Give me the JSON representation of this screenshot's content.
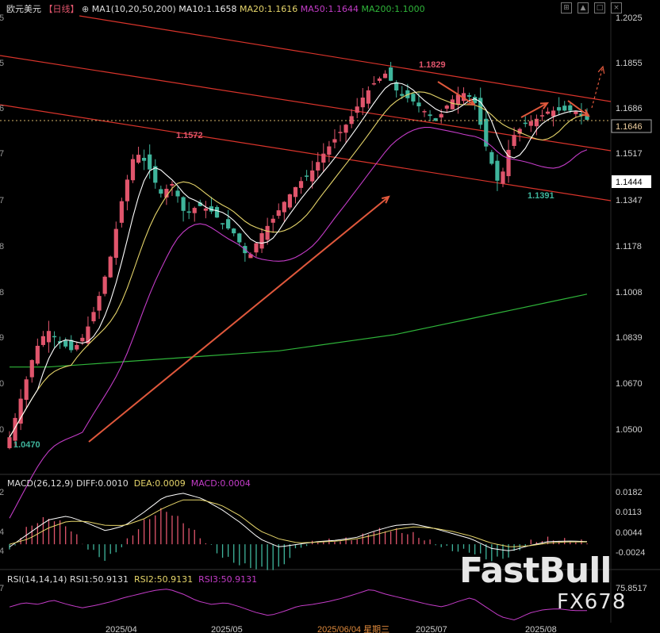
{
  "header": {
    "symbol": "欧元美元",
    "period": "【日线】",
    "ma_title": "MA1(10,20,50,200)",
    "ma10": "MA10:1.1658",
    "ma20": "MA20:1.1616",
    "ma50": "MA50:1.1644",
    "ma200": "MA200:1.1000",
    "window_icons": [
      "collapse-icon",
      "restore-icon",
      "maximize-icon",
      "close-icon"
    ]
  },
  "colors": {
    "bg": "#000000",
    "up": "#e0556c",
    "down": "#3fb59c",
    "ma10": "#ffffff",
    "ma20": "#e6d56a",
    "ma50": "#c43cc8",
    "ma200": "#2fb53a",
    "channel": "#d9342b",
    "arrow": "#e0583c",
    "label_high": "#e0556c",
    "label_low": "#3fb59c"
  },
  "price_axis": {
    "ticks": [
      "1.2025",
      "1.1855",
      "1.1686",
      "1.1517",
      "1.1347",
      "1.1178",
      "1.1008",
      "1.0839",
      "1.0670",
      "1.0500"
    ],
    "current_price": "1.1646",
    "marker_price": "1.1444"
  },
  "annotations": {
    "high_label": "1.1829",
    "mid_label": "1.1572",
    "low_label": "1.1391",
    "start_label": "1.0470"
  },
  "macd": {
    "title": "MACD(26,12,9)",
    "diff": "DIFF:0.0010",
    "dea": "DEA:0.0009",
    "macd": "MACD:0.0004",
    "ticks": [
      "0.0182",
      "0.0113",
      "0.0044",
      "-0.0024"
    ]
  },
  "rsi": {
    "title": "RSI(14,14,14)",
    "rsi1": "RSI1:50.9131",
    "rsi2": "RSI2:50.9131",
    "rsi3": "RSI3:50.9131",
    "top_tick": "75.8517"
  },
  "time_axis": {
    "labels": [
      "2025/04",
      "2025/05",
      "2025/06/04 星期三",
      "2025/07",
      "2025/08"
    ]
  },
  "watermark": {
    "line1": "FastBull",
    "line2": "FX678"
  },
  "chart_data": {
    "type": "candlestick",
    "instrument": "欧元美元",
    "timeframe": "日线",
    "categories": [
      "2025/04",
      "2025/05",
      "2025/06/04 星期三",
      "2025/07",
      "2025/08"
    ],
    "close_path": [
      1.047,
      1.063,
      1.079,
      1.087,
      1.082,
      1.079,
      1.085,
      1.097,
      1.113,
      1.136,
      1.153,
      1.148,
      1.137,
      1.141,
      1.129,
      1.133,
      1.131,
      1.126,
      1.122,
      1.113,
      1.122,
      1.128,
      1.135,
      1.141,
      1.145,
      1.152,
      1.158,
      1.164,
      1.172,
      1.178,
      1.182,
      1.174,
      1.172,
      1.168,
      1.164,
      1.171,
      1.175,
      1.172,
      1.154,
      1.14,
      1.158,
      1.163,
      1.165,
      1.168,
      1.168,
      1.168,
      1.1646
    ],
    "ma200_path": [
      1.073,
      1.073,
      1.074,
      1.075,
      1.076,
      1.077,
      1.078,
      1.079,
      1.081,
      1.083,
      1.085,
      1.088,
      1.091,
      1.094,
      1.097,
      1.1
    ],
    "moving_averages": {
      "MA10": 1.1658,
      "MA20": 1.1616,
      "MA50": 1.1644,
      "MA200": 1.1
    },
    "annotations": {
      "high": 1.1829,
      "mid": 1.1572,
      "low": 1.1391,
      "start": 1.047
    },
    "current_price": 1.1646,
    "marker_price": 1.1444,
    "ylim": [
      1.042,
      1.2025
    ],
    "yticks": [
      1.2025,
      1.1855,
      1.1686,
      1.1517,
      1.1347,
      1.1178,
      1.1008,
      1.0839,
      1.067,
      1.05
    ],
    "macd": {
      "DIFF": 0.001,
      "DEA": 0.0009,
      "MACD": 0.0004,
      "diff_path": [
        -0.001,
        0.004,
        0.009,
        0.0105,
        0.008,
        0.005,
        0.007,
        0.012,
        0.0175,
        0.019,
        0.017,
        0.013,
        0.008,
        0.002,
        -0.001,
        0.0,
        0.001,
        0.0015,
        0.0025,
        0.005,
        0.007,
        0.0075,
        0.006,
        0.004,
        0.002,
        -0.0015,
        -0.0025,
        -0.0005,
        0.001,
        0.0012,
        0.001
      ],
      "dea_path": [
        0.0,
        0.002,
        0.006,
        0.0085,
        0.0085,
        0.007,
        0.007,
        0.0095,
        0.0135,
        0.0165,
        0.0165,
        0.0145,
        0.0105,
        0.005,
        0.002,
        0.0005,
        0.0008,
        0.0012,
        0.002,
        0.0035,
        0.0055,
        0.0065,
        0.006,
        0.0048,
        0.003,
        0.0005,
        -0.001,
        -0.0006,
        0.0005,
        0.0009,
        0.0009
      ],
      "ylim": [
        -0.0035,
        0.0195
      ],
      "yticks": [
        0.0182,
        0.0113,
        0.0044,
        -0.0024
      ]
    },
    "rsi": {
      "RSI1": 50.9131,
      "RSI2": 50.9131,
      "RSI3": 50.9131,
      "path": [
        55,
        60,
        58,
        63,
        58,
        54,
        57,
        61,
        66,
        70,
        74,
        75.8,
        70,
        62,
        58,
        60,
        55,
        49,
        45,
        50,
        56,
        58,
        61,
        65,
        70,
        75.5,
        70,
        66,
        62,
        58,
        55,
        61,
        66,
        55,
        44,
        40,
        48,
        52,
        53,
        51,
        50.9
      ],
      "ylim": [
        37,
        78
      ]
    },
    "channel_lines": 3,
    "trend_arrows": 5,
    "grid": false,
    "legend": "top-left"
  }
}
